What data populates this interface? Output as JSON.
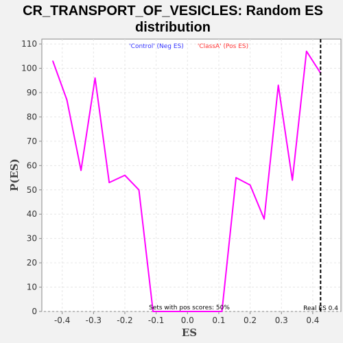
{
  "colors": {
    "background": "#f2f2f2",
    "plot_background": "#ffffff",
    "series_line": "#ff00ff",
    "grid": "#e6e6e6",
    "axis": "#888888",
    "legend_neg": "#3333ff",
    "legend_pos": "#ff3333",
    "real_es_line": "#000000"
  },
  "chart_data": {
    "type": "line",
    "title_line1": "CR_TRANSPORT_OF_VESICLES: Random ES",
    "title_line2": "distribution",
    "xlabel": "ES",
    "ylabel": "P(ES)",
    "xlim": [
      -0.465,
      0.49
    ],
    "ylim": [
      0,
      112
    ],
    "x_ticks": [
      -0.4,
      -0.3,
      -0.2,
      -0.1,
      0.0,
      0.1,
      0.2,
      0.3,
      0.4
    ],
    "x_tick_labels": [
      "-0.4",
      "-0.3",
      "-0.2",
      "-0.1",
      "0.0",
      "0.1",
      "0.2",
      "0.3",
      "0.4"
    ],
    "y_ticks": [
      0,
      10,
      20,
      30,
      40,
      50,
      60,
      70,
      80,
      90,
      100,
      110
    ],
    "y_tick_labels": [
      "0",
      "10",
      "20",
      "30",
      "40",
      "50",
      "60",
      "70",
      "80",
      "90",
      "100",
      "110"
    ],
    "grid": true,
    "legend_placement": "top-center",
    "legend": [
      {
        "label": "'Control' (Neg ES)",
        "color_key": "legend_neg"
      },
      {
        "label": "'ClassA' (Pos ES)",
        "color_key": "legend_pos"
      }
    ],
    "series": [
      {
        "x": [
          -0.43,
          -0.385,
          -0.34,
          -0.295,
          -0.25,
          -0.2,
          -0.155,
          -0.11,
          0.0,
          0.11,
          0.155,
          0.2,
          0.245,
          0.29,
          0.335,
          0.38,
          0.425
        ],
        "y": [
          103,
          87,
          58,
          96,
          53,
          56,
          50,
          0,
          0,
          0,
          55,
          52,
          38,
          93,
          54,
          107,
          98
        ]
      }
    ],
    "real_es": {
      "value": 0.425,
      "label": "Real ES 0.4"
    },
    "annotation": "Sets with pos scores: 50%"
  }
}
